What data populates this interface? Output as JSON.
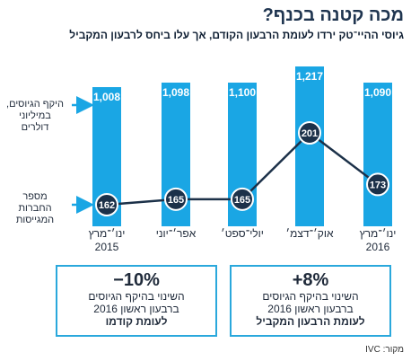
{
  "title": "מכה קטנה בכנף?",
  "subtitle": "גיוסי ההיי־טק ירדו לעומת הרבעון הקודם, אך עלו ביחס לרבעון המקביל",
  "legend": {
    "funding_line1": "היקף הגיוסים,",
    "funding_line2": "במיליוני",
    "funding_line3": "דולרים",
    "companies_line1": "מספר",
    "companies_line2": "החברות",
    "companies_line3": "המגייסות"
  },
  "chart_data": {
    "type": "bar",
    "categories": [
      "ינו׳־מרץ",
      "אפר׳־יוני",
      "יולי־ספט׳",
      "אוק׳־דצמ׳",
      "ינו׳־מרץ"
    ],
    "year_labels": [
      "2015",
      "",
      "",
      "",
      "2016"
    ],
    "series": [
      {
        "name": "היקף הגיוסים, במיליוני דולרים",
        "type": "bar",
        "values": [
          1008,
          1098,
          1100,
          1217,
          1090
        ],
        "labels": [
          "1,008",
          "1,098",
          "1,100",
          "1,217",
          "1,090"
        ]
      },
      {
        "name": "מספר החברות המגייסות",
        "type": "line",
        "values": [
          162,
          165,
          165,
          201,
          173
        ],
        "labels": [
          "162",
          "165",
          "165",
          "201",
          "173"
        ]
      }
    ],
    "colors": {
      "bar": "#1aa6e4",
      "line": "#1c3149",
      "marker_fill": "#1c3149",
      "marker_stroke": "#ffffff",
      "box_border": "#2aa8dc",
      "arrow": "#1aa6e4"
    }
  },
  "boxes": [
    {
      "big": "+8%",
      "line1": "השינוי בהיקף הגיוסים",
      "line2": "ברבעון ראשון 2016",
      "line3": "לעומת הרבעון המקביל"
    },
    {
      "big": "−10%",
      "line1": "השינוי בהיקף הגיוסים",
      "line2": "ברבעון ראשון 2016",
      "line3": "לעומת קודמו"
    }
  ],
  "source": "מקור: IVC"
}
